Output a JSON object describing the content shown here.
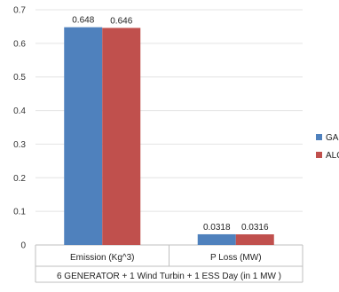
{
  "chart_data": {
    "type": "bar",
    "categories": [
      "Emission (Kg^3)",
      "P Loss (MW)"
    ],
    "group_label": "6 GENERATOR + 1 Wind Turbin + 1 ESS Day (in 1 MW )",
    "series": [
      {
        "name": "GA",
        "color": "#4f81bd",
        "values": [
          0.648,
          0.0318
        ],
        "labels": [
          "0.648",
          "0.0318"
        ]
      },
      {
        "name": "ALO",
        "color": "#c0504d",
        "values": [
          0.646,
          0.0316
        ],
        "labels": [
          "0.646",
          "0.0316"
        ]
      }
    ],
    "ylim": [
      0,
      0.7
    ],
    "yticks": [
      "0",
      "0.1",
      "0.2",
      "0.3",
      "0.4",
      "0.5",
      "0.6",
      "0.7"
    ],
    "grid": true,
    "legend_position": "right"
  }
}
